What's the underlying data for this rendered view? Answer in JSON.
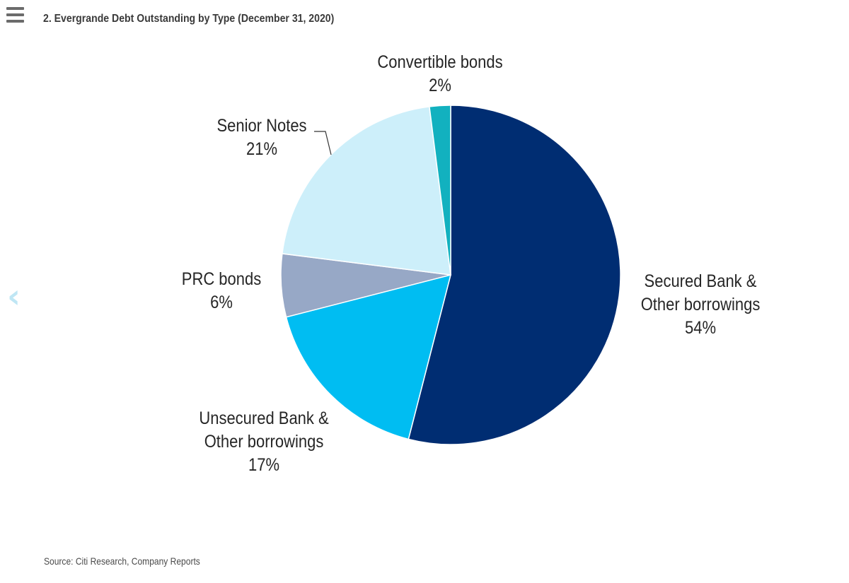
{
  "header": {
    "menu_icon": "hamburger-menu-icon",
    "title": "2. Evergrande Debt Outstanding by Type (December 31, 2020)"
  },
  "nav": {
    "prev_icon": "chevron-left-icon",
    "prev_glyph": "‹"
  },
  "footer": {
    "source": "Source: Citi Research, Company Reports"
  },
  "chart_data": {
    "type": "pie",
    "title": "2. Evergrande Debt Outstanding by Type (December 31, 2020)",
    "start_angle_deg": 0,
    "direction": "clockwise",
    "slices": [
      {
        "label_lines": [
          "Secured Bank &",
          "Other borrowings"
        ],
        "label": "Secured Bank & Other borrowings",
        "value": 54,
        "pct_text": "54%",
        "color": "#002d72"
      },
      {
        "label_lines": [
          "Unsecured Bank &",
          "Other borrowings"
        ],
        "label": "Unsecured Bank & Other borrowings",
        "value": 17,
        "pct_text": "17%",
        "color": "#00bdf2"
      },
      {
        "label_lines": [
          "PRC bonds"
        ],
        "label": "PRC bonds",
        "value": 6,
        "pct_text": "6%",
        "color": "#97a8c6"
      },
      {
        "label_lines": [
          "Senior Notes"
        ],
        "label": "Senior Notes",
        "value": 21,
        "pct_text": "21%",
        "color": "#cdeffa"
      },
      {
        "label_lines": [
          "Convertible bonds"
        ],
        "label": "Convertible bonds",
        "value": 2,
        "pct_text": "2%",
        "color": "#12b1bf"
      }
    ]
  }
}
